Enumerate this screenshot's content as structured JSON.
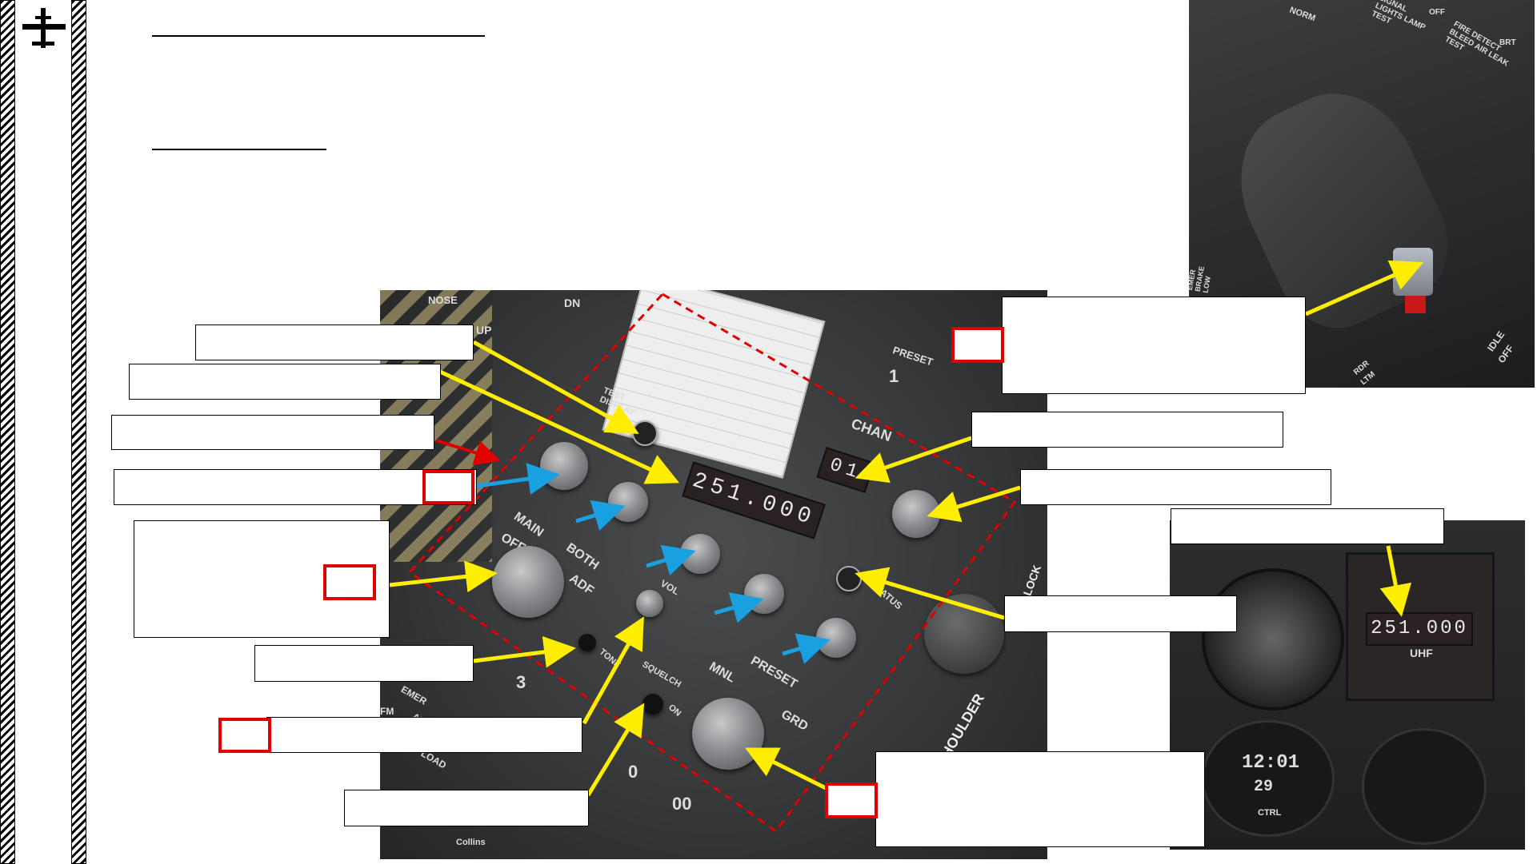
{
  "panel": {
    "frequency_display": "251.000",
    "channel_display": "01",
    "preset_display": "1",
    "labels": {
      "test_display": "TEST DISPLAY",
      "chan": "CHAN",
      "status": "STATUS",
      "main": "MAIN",
      "off": "OFF",
      "both": "BOTH",
      "adf": "ADF",
      "vol": "VOL",
      "mnl": "MNL",
      "preset": "PRESET",
      "grd": "GRD",
      "squelch": "SQUELCH",
      "on": "ON",
      "tone": "TONE",
      "emer": "EMER",
      "fm": "FM",
      "am": "AM",
      "load": "LOAD",
      "collins": "Collins",
      "shoulder": "SHOULDER",
      "lock": "LOCK",
      "gear_dn": "DN",
      "gear_up": "UP",
      "nose": "NOSE",
      "preset_card": "PRESET",
      "three": "3",
      "zero": "0",
      "double_zero": "00"
    }
  },
  "throttle": {
    "labels": {
      "norm": "NORM",
      "signal_lights_lamp_test": "SIGNAL LIGHTS LAMP TEST",
      "fire_detect": "FIRE DETECT BLEED AIR LEAK TEST",
      "off": "OFF",
      "brt": "BRT",
      "idle": "IDLE",
      "off2": "OFF",
      "rdr": "RDR",
      "ltm": "LTM",
      "emer_brake_low": "EMER BRAKE LOW"
    }
  },
  "uhf_repeater": {
    "frequency": "251.000",
    "label": "UHF",
    "clock": "12:01",
    "clock_sub": "29",
    "ctrl": "CTRL"
  },
  "colors": {
    "callout_arrow_yellow": "#ffee00",
    "arrow_blue": "#18a0e0",
    "arrow_red": "#e00000",
    "highlight_red": "#e00000"
  }
}
